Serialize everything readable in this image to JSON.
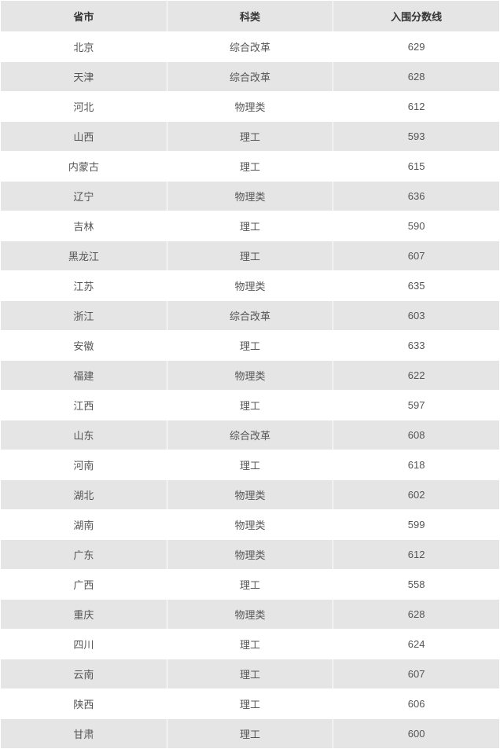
{
  "table": {
    "columns": [
      "省市",
      "科类",
      "入围分数线"
    ],
    "column_widths": [
      "33.3%",
      "33.3%",
      "33.4%"
    ],
    "header_bg": "#e5e5e5",
    "header_color": "#333333",
    "header_fontsize": 13,
    "header_fontweight": "bold",
    "cell_fontsize": 13,
    "cell_color": "#555555",
    "row_bg_odd": "#ffffff",
    "row_bg_even": "#e5e5e5",
    "border_color": "#ffffff",
    "rows": [
      [
        "北京",
        "综合改革",
        "629"
      ],
      [
        "天津",
        "综合改革",
        "628"
      ],
      [
        "河北",
        "物理类",
        "612"
      ],
      [
        "山西",
        "理工",
        "593"
      ],
      [
        "内蒙古",
        "理工",
        "615"
      ],
      [
        "辽宁",
        "物理类",
        "636"
      ],
      [
        "吉林",
        "理工",
        "590"
      ],
      [
        "黑龙江",
        "理工",
        "607"
      ],
      [
        "江苏",
        "物理类",
        "635"
      ],
      [
        "浙江",
        "综合改革",
        "603"
      ],
      [
        "安徽",
        "理工",
        "633"
      ],
      [
        "福建",
        "物理类",
        "622"
      ],
      [
        "江西",
        "理工",
        "597"
      ],
      [
        "山东",
        "综合改革",
        "608"
      ],
      [
        "河南",
        "理工",
        "618"
      ],
      [
        "湖北",
        "物理类",
        "602"
      ],
      [
        "湖南",
        "物理类",
        "599"
      ],
      [
        "广东",
        "物理类",
        "612"
      ],
      [
        "广西",
        "理工",
        "558"
      ],
      [
        "重庆",
        "物理类",
        "628"
      ],
      [
        "四川",
        "理工",
        "624"
      ],
      [
        "云南",
        "理工",
        "607"
      ],
      [
        "陕西",
        "理工",
        "606"
      ],
      [
        "甘肃",
        "理工",
        "600"
      ]
    ]
  }
}
